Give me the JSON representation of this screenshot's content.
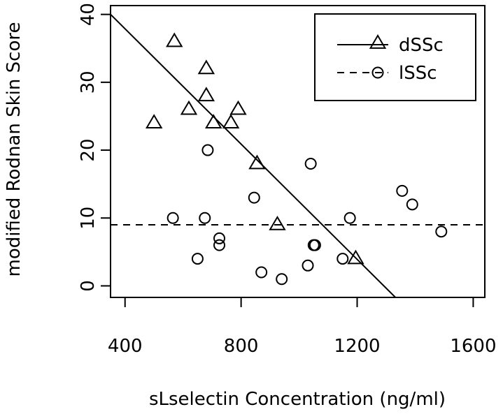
{
  "chart_data": {
    "type": "scatter",
    "xlabel": "sLselectin Concentration (ng/ml)",
    "ylabel": "modified Rodnan Skin Score",
    "xlim": [
      350,
      1640
    ],
    "ylim": [
      -1.7,
      41.3
    ],
    "xticks": [
      400,
      800,
      1200,
      1600
    ],
    "yticks": [
      0,
      10,
      20,
      30,
      40
    ],
    "xtick_labels": [
      "400",
      "800",
      "1200",
      "1600"
    ],
    "ytick_labels": [
      "0",
      "10",
      "20",
      "30",
      "40"
    ],
    "legend": {
      "position": "top-right"
    },
    "series": [
      {
        "name": "dSSc",
        "marker": "triangle",
        "line_style": "solid",
        "points": [
          [
            570,
            36
          ],
          [
            680,
            32
          ],
          [
            680,
            28
          ],
          [
            620,
            26
          ],
          [
            790,
            26
          ],
          [
            500,
            24
          ],
          [
            705,
            24
          ],
          [
            765,
            24
          ],
          [
            855,
            18
          ],
          [
            925,
            9
          ],
          [
            1195,
            4
          ]
        ],
        "fit_line": [
          [
            350,
            40
          ],
          [
            1332,
            -1.7
          ]
        ]
      },
      {
        "name": "lSSc",
        "marker": "circle",
        "line_style": "dashed",
        "points": [
          [
            685,
            20
          ],
          [
            1040,
            18
          ],
          [
            845,
            13
          ],
          [
            1355,
            14
          ],
          [
            1390,
            12
          ],
          [
            565,
            10
          ],
          [
            675,
            10
          ],
          [
            1175,
            10
          ],
          [
            725,
            7
          ],
          [
            725,
            6
          ],
          [
            1050,
            6
          ],
          [
            1055,
            6
          ],
          [
            1490,
            8
          ],
          [
            650,
            4
          ],
          [
            1150,
            4
          ],
          [
            1030,
            3
          ],
          [
            870,
            2
          ],
          [
            940,
            1
          ]
        ],
        "fit_line": [
          [
            350,
            9
          ],
          [
            1640,
            9
          ]
        ]
      }
    ]
  }
}
